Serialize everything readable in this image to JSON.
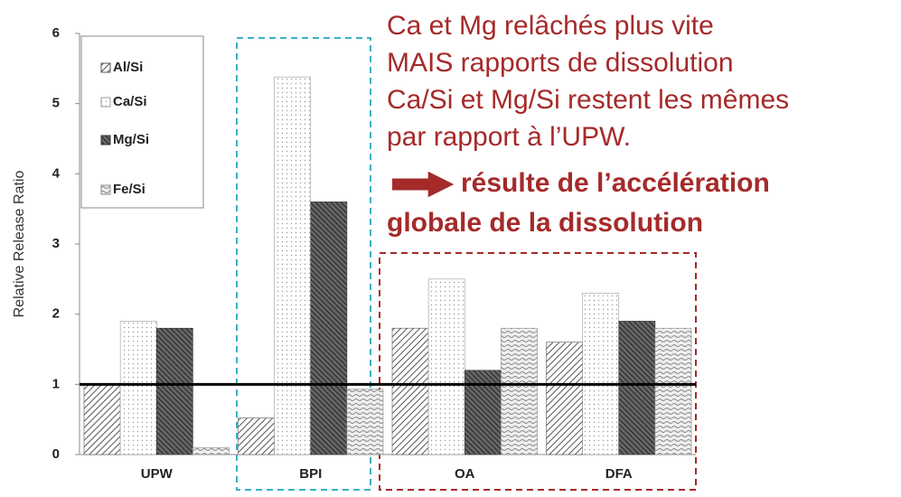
{
  "chart_data": {
    "type": "bar",
    "y_label": "Relative Release Ratio",
    "categories": [
      "UPW",
      "BPI",
      "OA",
      "DFA"
    ],
    "series": [
      {
        "name": "Al/Si",
        "color": "#555555",
        "pattern": "hatch",
        "values": [
          1.0,
          0.52,
          1.8,
          1.6
        ]
      },
      {
        "name": "Ca/Si",
        "color": "#999999",
        "pattern": "dots",
        "values": [
          1.9,
          5.38,
          2.5,
          2.3
        ]
      },
      {
        "name": "Mg/Si",
        "color": "#333333",
        "pattern": "dense",
        "values": [
          1.8,
          3.6,
          1.2,
          1.9
        ]
      },
      {
        "name": "Fe/Si",
        "color": "#888888",
        "pattern": "wave",
        "values": [
          0.1,
          0.93,
          1.8,
          1.8
        ]
      }
    ],
    "reference_line": 1,
    "ylim": [
      0,
      6
    ],
    "yticks": [
      0,
      1,
      2,
      3,
      4,
      5,
      6
    ],
    "annotation": [
      "Ca et Mg relâchés plus vite",
      "MAIS rapports de dissolution",
      "Ca/Si et Mg/Si restent les mêmes",
      "par rapport à l’UPW."
    ],
    "conclusion": [
      "résulte de l’accélération",
      "globale de la dissolution"
    ]
  }
}
